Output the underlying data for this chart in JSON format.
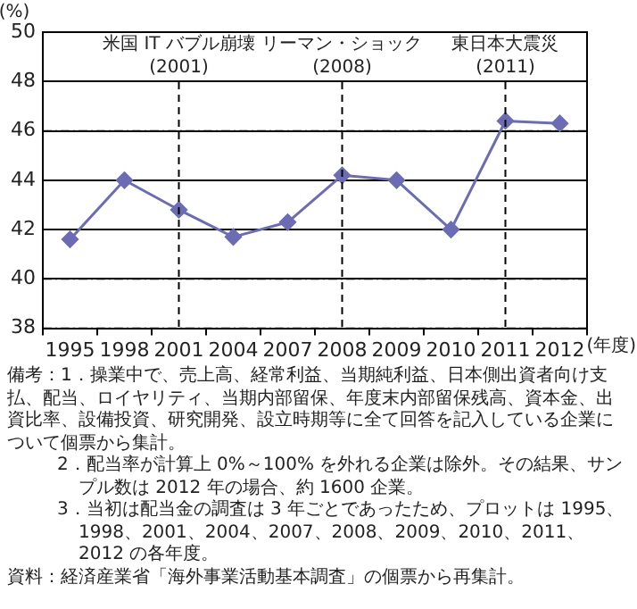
{
  "chart_data": {
    "type": "line",
    "ylabel": "(%)",
    "xlabel": "(年度)",
    "categories": [
      "1995",
      "1998",
      "2001",
      "2004",
      "2007",
      "2008",
      "2009",
      "2010",
      "2011",
      "2012"
    ],
    "series": [
      {
        "color": "#6c6cb4",
        "values": [
          41.6,
          44.0,
          42.8,
          41.7,
          42.3,
          44.2,
          44.0,
          42.0,
          46.4,
          46.3
        ]
      }
    ],
    "ylim": [
      38,
      50
    ],
    "yticks": [
      38,
      40,
      42,
      44,
      46,
      48,
      50
    ],
    "grid": "y",
    "legend": false,
    "marker": "diamond",
    "line_style": "solid",
    "ref_lines": [
      {
        "axis": "x",
        "value": "2001",
        "label": "米国 IT バブル崩壊\n(2001)",
        "line_style": "dashed",
        "color": "#000000"
      },
      {
        "axis": "x",
        "value": "2008",
        "label": "リーマン・ショック\n(2008)",
        "line_style": "dashed",
        "color": "#000000"
      },
      {
        "axis": "x",
        "value": "2011",
        "label": "東日本大震災\n(2011)",
        "line_style": "dashed",
        "color": "#000000"
      }
    ],
    "annotations": [
      "備考：1．操業中で、売上高、経常利益、当期純利益、日本側出資者向け支払、配当、ロイヤリティ、当期内部留保、年度末内部留保残高、資本金、出資比率、設備投資、研究開発、設立時期等に全て回答を記入している企業について個票から集計。",
      "2．配当率が計算上 0%～100% を外れる企業は除外。その結果、サンプル数は 2012 年の場合、約 1600 企業。",
      "3．当初は配当金の調査は 3 年ごとであったため、プロットは 1995、1998、2001、2004、2007、2008、2009、2010、2011、2012 の各年度。",
      "資料：経済産業省「海外事業活動基本調査」の個票から再集計。"
    ]
  }
}
